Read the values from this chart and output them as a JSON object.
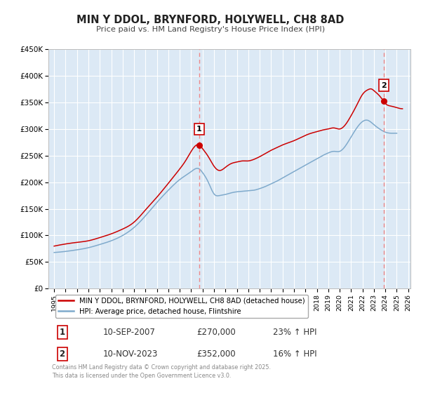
{
  "title": "MIN Y DDOL, BRYNFORD, HOLYWELL, CH8 8AD",
  "subtitle": "Price paid vs. HM Land Registry's House Price Index (HPI)",
  "background_color": "#ffffff",
  "plot_bg_color": "#dce9f5",
  "grid_color": "#ffffff",
  "ylim": [
    0,
    450000
  ],
  "xlim": [
    1994.5,
    2026.2
  ],
  "yticks": [
    0,
    50000,
    100000,
    150000,
    200000,
    250000,
    300000,
    350000,
    400000,
    450000
  ],
  "ytick_labels": [
    "£0",
    "£50K",
    "£100K",
    "£150K",
    "£200K",
    "£250K",
    "£300K",
    "£350K",
    "£400K",
    "£450K"
  ],
  "xticks": [
    1995,
    1996,
    1997,
    1998,
    1999,
    2000,
    2001,
    2002,
    2003,
    2004,
    2005,
    2006,
    2007,
    2008,
    2009,
    2010,
    2011,
    2012,
    2013,
    2014,
    2015,
    2016,
    2017,
    2018,
    2019,
    2020,
    2021,
    2022,
    2023,
    2024,
    2025,
    2026
  ],
  "sale1_x": 2007.69,
  "sale1_y": 270000,
  "sale2_x": 2023.86,
  "sale2_y": 352000,
  "vline1_x": 2007.69,
  "vline2_x": 2023.86,
  "red_line_color": "#cc0000",
  "blue_line_color": "#7faacc",
  "vline_color": "#ee8888",
  "marker_color": "#cc0000",
  "legend1_label": "MIN Y DDOL, BRYNFORD, HOLYWELL, CH8 8AD (detached house)",
  "legend2_label": "HPI: Average price, detached house, Flintshire",
  "table_row1": [
    "1",
    "10-SEP-2007",
    "£270,000",
    "23% ↑ HPI"
  ],
  "table_row2": [
    "2",
    "10-NOV-2023",
    "£352,000",
    "16% ↑ HPI"
  ],
  "footer": "Contains HM Land Registry data © Crown copyright and database right 2025.\nThis data is licensed under the Open Government Licence v3.0."
}
